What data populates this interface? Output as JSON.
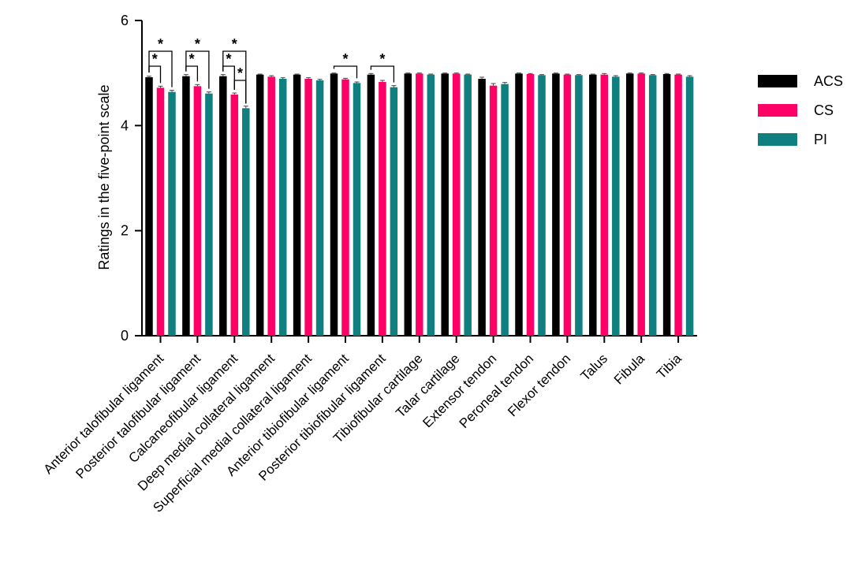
{
  "chart_data": {
    "type": "bar",
    "ylabel": "Ratings in the five-point scale",
    "xlabel": "",
    "ylim": [
      0,
      6
    ],
    "yticks": [
      0,
      2,
      4,
      6
    ],
    "legend_position": "right",
    "grid": false,
    "categories": [
      "Anterior talofibular ligament",
      "Posterior talofibular ligament",
      "Calcaneofibular ligament",
      "Deep medial collateral ligament",
      "Superficial medial collateral ligament",
      "Anterior tibiofibular ligament",
      "Posterior tibiofibular ligament",
      "Tibiofibular cartilage",
      "Talar cartilage",
      "Extensor tendon",
      "Peroneal tendon",
      "Flexor tendon",
      "Talus",
      "Fibula",
      "Tibia"
    ],
    "series": [
      {
        "name": "ACS",
        "color": "#000000",
        "values": [
          4.92,
          4.94,
          4.94,
          4.97,
          4.97,
          4.99,
          4.97,
          4.99,
          4.99,
          4.89,
          4.99,
          4.99,
          4.97,
          4.99,
          4.98
        ],
        "errors": [
          0.02,
          0.03,
          0.03,
          0.01,
          0.01,
          0.01,
          0.02,
          0.01,
          0.01,
          0.03,
          0.01,
          0.01,
          0.01,
          0.01,
          0.01
        ]
      },
      {
        "name": "CS",
        "color": "#ff0066",
        "values": [
          4.72,
          4.75,
          4.59,
          4.93,
          4.89,
          4.88,
          4.83,
          4.99,
          4.99,
          4.76,
          4.98,
          4.97,
          4.97,
          4.99,
          4.97
        ],
        "errors": [
          0.03,
          0.03,
          0.03,
          0.02,
          0.02,
          0.02,
          0.03,
          0.01,
          0.01,
          0.04,
          0.01,
          0.01,
          0.02,
          0.01,
          0.01
        ]
      },
      {
        "name": "PI",
        "color": "#0f7f7f",
        "values": [
          4.64,
          4.61,
          4.33,
          4.89,
          4.86,
          4.81,
          4.73,
          4.97,
          4.97,
          4.79,
          4.96,
          4.96,
          4.93,
          4.96,
          4.93
        ],
        "errors": [
          0.03,
          0.03,
          0.04,
          0.02,
          0.02,
          0.02,
          0.03,
          0.01,
          0.01,
          0.03,
          0.01,
          0.01,
          0.02,
          0.01,
          0.02
        ]
      }
    ],
    "significance": [
      {
        "category": 0,
        "from": 0,
        "to": 1,
        "level": 1,
        "label": "*"
      },
      {
        "category": 0,
        "from": 0,
        "to": 2,
        "level": 2,
        "label": "*"
      },
      {
        "category": 1,
        "from": 0,
        "to": 1,
        "level": 1,
        "label": "*"
      },
      {
        "category": 1,
        "from": 0,
        "to": 2,
        "level": 2,
        "label": "*"
      },
      {
        "category": 2,
        "from": 0,
        "to": 1,
        "level": 1,
        "label": "*"
      },
      {
        "category": 2,
        "from": 0,
        "to": 2,
        "level": 2,
        "label": "*"
      },
      {
        "category": 2,
        "from": 1,
        "to": 2,
        "level": 0,
        "label": "*"
      },
      {
        "category": 5,
        "from": 0,
        "to": 2,
        "level": 1,
        "label": "*"
      },
      {
        "category": 6,
        "from": 0,
        "to": 2,
        "level": 1,
        "label": "*"
      }
    ]
  }
}
